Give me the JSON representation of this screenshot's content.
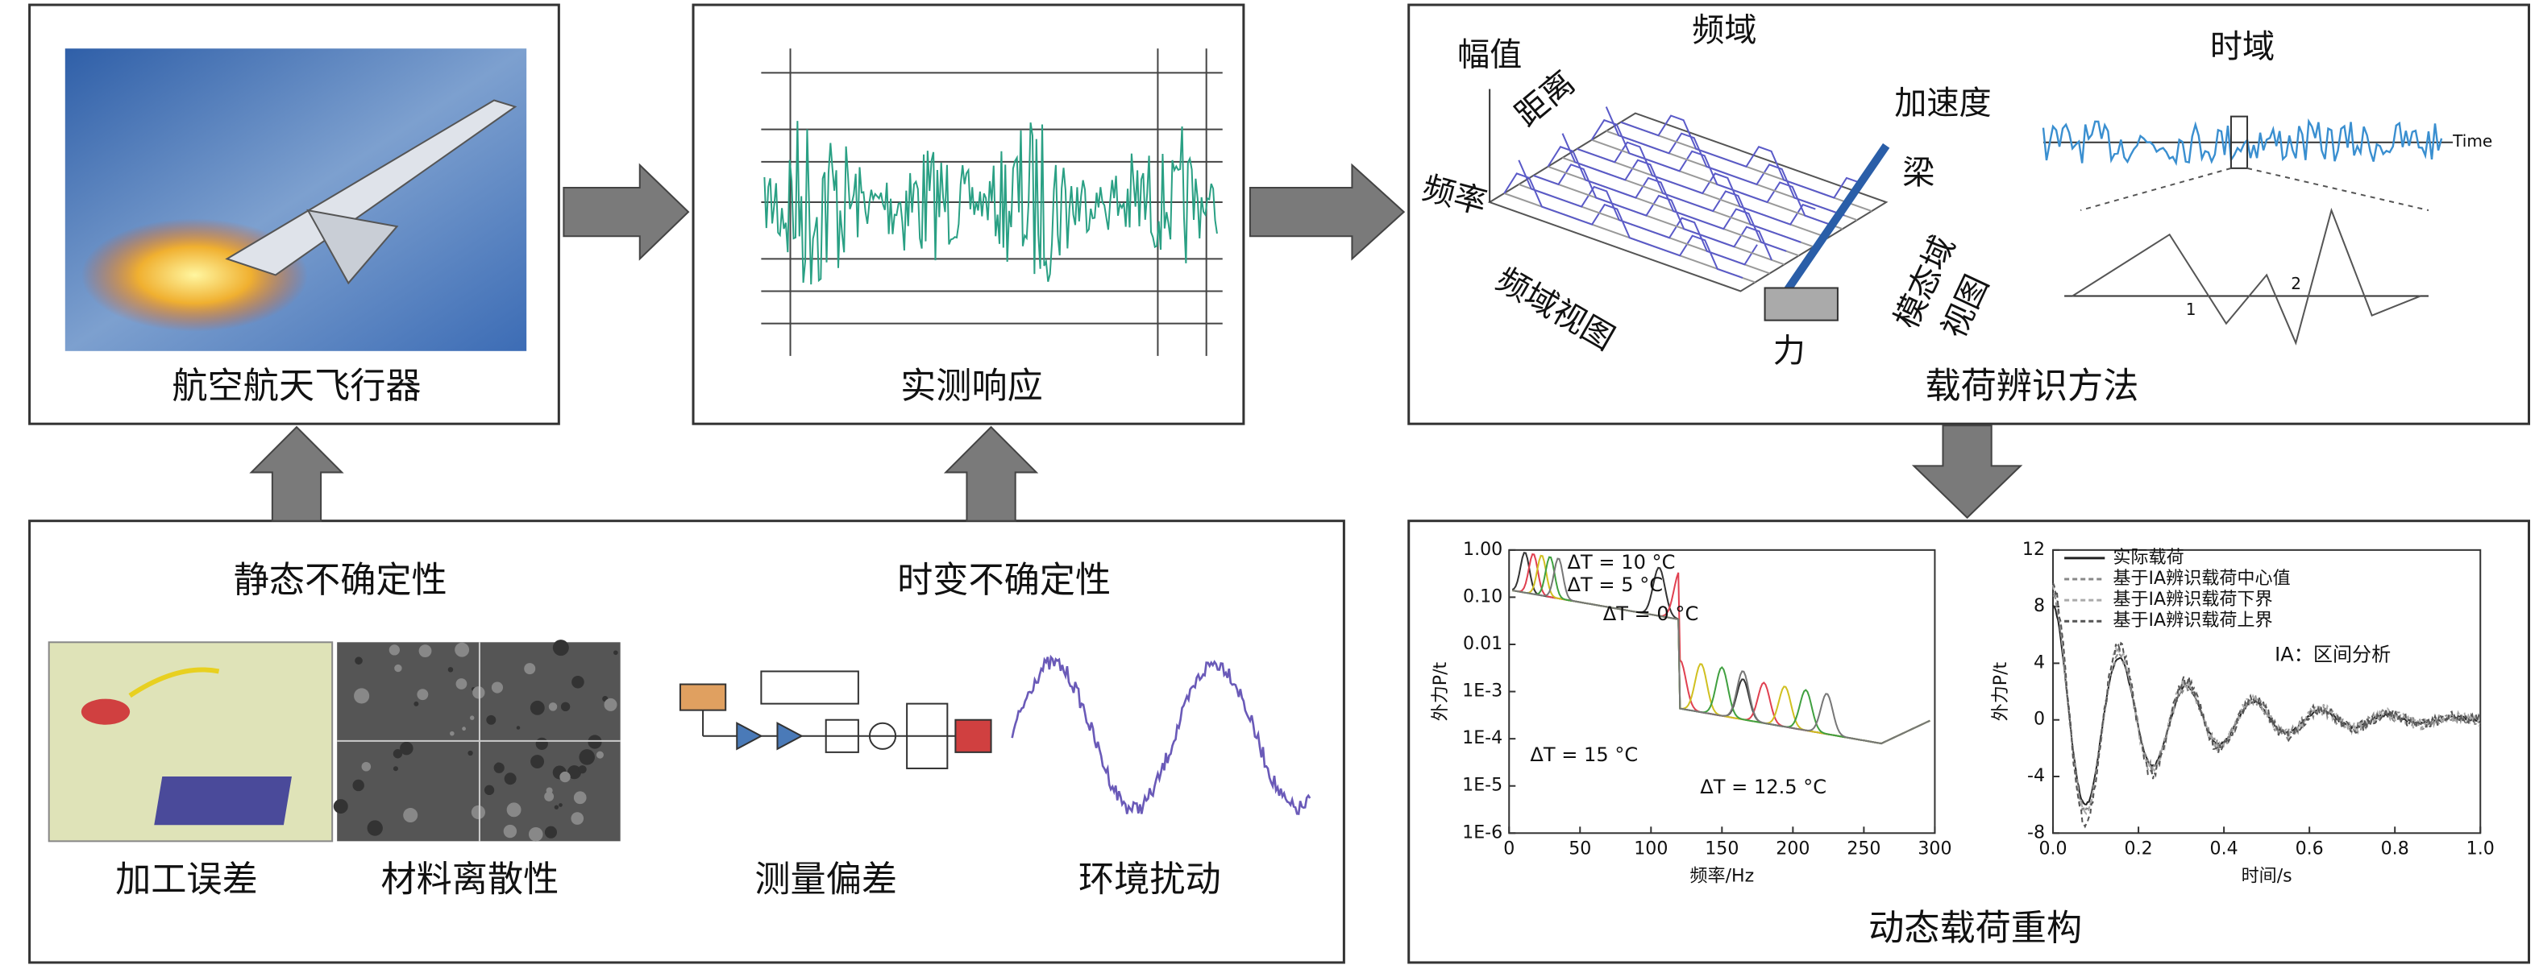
{
  "aircraft": {
    "label": "航空航天飞行器"
  },
  "response": {
    "label": "实测响应"
  },
  "identification": {
    "title": "载荷辨识方法",
    "frequency_domain": "频域",
    "amplitude": "幅值",
    "distance": "距离",
    "frequency": "频率",
    "frequency_view": "频域视图",
    "acceleration": "加速度",
    "beam": "梁",
    "modal_domain": "模态域",
    "modal_view": "视图",
    "force": "力",
    "time_domain": "时域",
    "time_axis": "Time",
    "peak_1": "1",
    "peak_2": "2"
  },
  "uncertainty": {
    "static": "静态不确定性",
    "time_varying": "时变不确定性",
    "items": [
      "加工误差",
      "材料离散性",
      "测量偏差",
      "环境扰动"
    ]
  },
  "reconstruction": {
    "title": "动态载荷重构",
    "freq_chart": {
      "xlabel": "频率/Hz",
      "ylabel": "外力P/t",
      "log_y": true,
      "xlim": [
        0,
        300
      ],
      "xticks": [
        0,
        50,
        100,
        150,
        200,
        250,
        300
      ],
      "ylim": [
        1e-06,
        1
      ],
      "yticks": [
        {
          "value": 1,
          "label": "1.00"
        },
        {
          "value": 0.1,
          "label": "0.10"
        },
        {
          "value": 0.01,
          "label": "0.01"
        },
        {
          "value": 0.001,
          "label": "1E-3"
        },
        {
          "value": 0.0001,
          "label": "1E-4"
        },
        {
          "value": 1e-05,
          "label": "1E-5"
        },
        {
          "value": 1e-06,
          "label": "1E-6"
        }
      ],
      "annotations": [
        "ΔT = 10 °C",
        "ΔT = 5 °C",
        "ΔT = 0 °C",
        "ΔT = 15 °C",
        "ΔT = 12.5 °C"
      ]
    },
    "time_chart": {
      "xlabel": "时间/s",
      "ylabel": "外力P/t",
      "xlim": [
        0,
        1
      ],
      "xticks": [
        {
          "value": 0,
          "label": "0.0"
        },
        0.2,
        0.4,
        0.6,
        0.8,
        {
          "value": 1,
          "label": "1.0"
        }
      ],
      "ylim": [
        -8,
        12
      ],
      "yticks": [
        -8,
        -4,
        0,
        4,
        8,
        12
      ],
      "legend": [
        "实际载荷",
        "基于IA辨识载荷中心值",
        "基于IA辨识载荷下界",
        "基于IA辨识载荷上界"
      ],
      "note": "IA：区间分析"
    }
  }
}
